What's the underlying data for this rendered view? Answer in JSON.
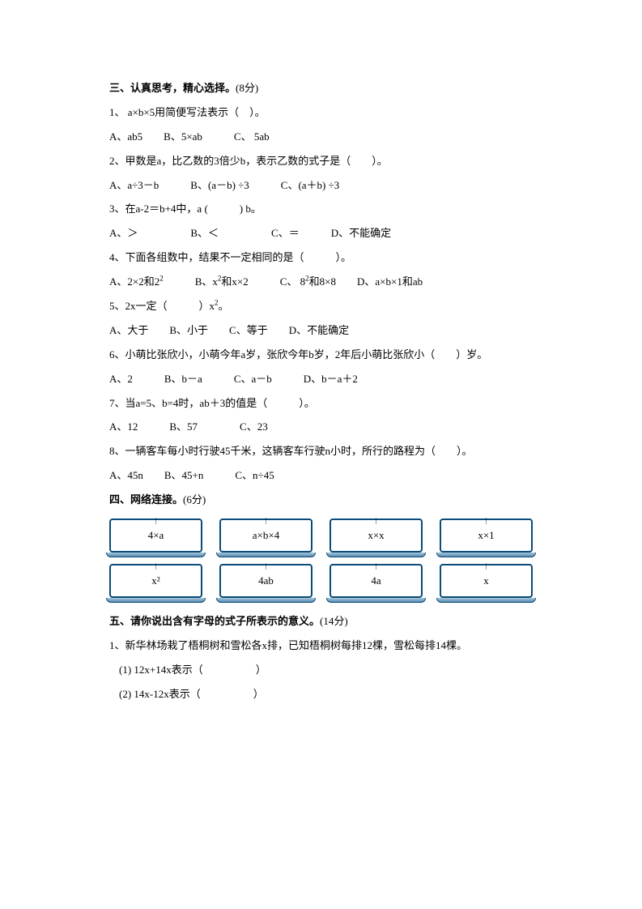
{
  "section3": {
    "title_bold": "三、认真思考，精心选择。",
    "title_weight": "(8分)",
    "q1": {
      "text": "1、 a×b×5用简便写法表示（　）。",
      "options": "A、ab5　　B、5×ab　　　C、 5ab"
    },
    "q2": {
      "text": "2、甲数是a，比乙数的3倍少b，表示乙数的式子是（　　）。",
      "options": "A、a÷3－b　　　B、(a－b) ÷3　　　C、(a＋b) ÷3"
    },
    "q3": {
      "text": "3、在a-2＝b+4中，a (　　　) b。",
      "options": "A、＞　　　　　B、＜　　　　　C、＝　　　D、不能确定"
    },
    "q4": {
      "text": "4、下面各组数中，结果不一定相同的是（　　　）。",
      "options_pre": "A、2×2和2",
      "options_sup1": "2",
      "options_mid1": "　　　B、x",
      "options_sup2": "2",
      "options_mid2": "和x×2　　　C、 8",
      "options_sup3": "2",
      "options_mid3": "和8×8　　D、a×b×1和ab"
    },
    "q5": {
      "text_pre": "5、2x一定（　　　）x",
      "text_sup": "2",
      "text_post": "。",
      "options": "A、大于　　B、小于　　C、等于　　D、不能确定"
    },
    "q6": {
      "text": "6、小萌比张欣小，小萌今年a岁，张欣今年b岁，2年后小萌比张欣小（　　）岁。",
      "options": "A、2　　　B、b－a　　　C、a－b　　　D、b－a＋2"
    },
    "q7": {
      "text": "7、当a=5、b=4时，ab＋3的值是（　　　）。",
      "options": "A、12　　　B、57　　　　C、23"
    },
    "q8": {
      "text": "8、一辆客车每小时行驶45千米，这辆客车行驶n小时，所行的路程为（　　）。",
      "options": "A、45n　　B、45+n　　　C、n÷45"
    }
  },
  "section4": {
    "title_bold": "四、网络连接。",
    "title_weight": "(6分)",
    "row1": [
      "4×a",
      "a×b×4",
      "x×x",
      "x×1"
    ],
    "row2": [
      "x²",
      "4ab",
      "4a",
      "x"
    ]
  },
  "section5": {
    "title_bold": "五、请你说出含有字母的式子所表示的意义。",
    "title_weight": "(14分)",
    "q1": {
      "text": "1、新华林场栽了梧桐树和雪松各x排，已知梧桐树每排12棵，雪松每排14棵。",
      "sub1": "(1) 12x+14x表示（　　　　　）",
      "sub2": "(2) 14x-12x表示（　　　　　）"
    }
  }
}
